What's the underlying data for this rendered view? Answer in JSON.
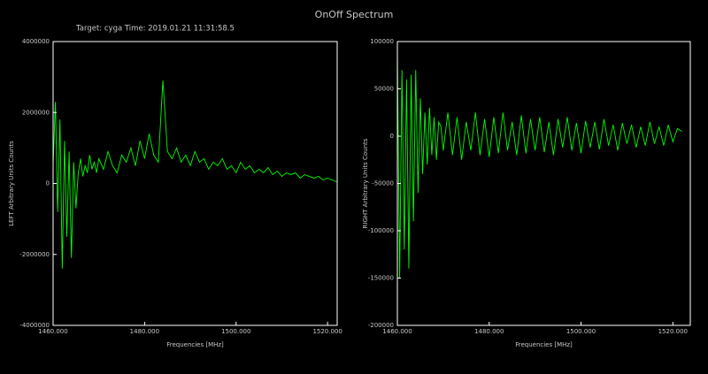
{
  "title": "OnOff Spectrum",
  "subtitle": "Target: cyga   Time: 2019.01.21 11:31:58.5",
  "chart_data": [
    {
      "type": "line",
      "xlabel": "Frequencies [MHz]",
      "ylabel": "LEFT  Arbitrary Units Counts",
      "xlim": [
        1460,
        1522.1
      ],
      "ylim": [
        -4000000,
        4000000
      ],
      "xticks": [
        {
          "value": 1460,
          "label": "1460.000"
        },
        {
          "value": 1480,
          "label": "1480.000"
        },
        {
          "value": 1500,
          "label": "1500.000"
        },
        {
          "value": 1520,
          "label": "1520.000"
        }
      ],
      "yticks": [
        -4000000,
        -2000000,
        0,
        2000000,
        4000000
      ],
      "x": [
        1460,
        1460.5,
        1461,
        1461.5,
        1462,
        1462.5,
        1463,
        1463.5,
        1464,
        1464.5,
        1465,
        1465.5,
        1466,
        1466.5,
        1467,
        1467.5,
        1468,
        1468.5,
        1469,
        1469.5,
        1470,
        1471,
        1472,
        1473,
        1474,
        1475,
        1476,
        1477,
        1478,
        1479,
        1480,
        1481,
        1482,
        1483,
        1484,
        1485,
        1486,
        1487,
        1488,
        1489,
        1490,
        1491,
        1492,
        1493,
        1494,
        1495,
        1496,
        1497,
        1498,
        1499,
        1500,
        1501,
        1502,
        1503,
        1504,
        1505,
        1506,
        1507,
        1508,
        1509,
        1510,
        1511,
        1512,
        1513,
        1514,
        1515,
        1516,
        1517,
        1518,
        1519,
        1520,
        1521,
        1522
      ],
      "series": [
        {
          "color": "#00ff00",
          "values": [
            500000,
            2300000,
            -800000,
            1800000,
            -2400000,
            1200000,
            -1500000,
            900000,
            -2100000,
            600000,
            -700000,
            300000,
            700000,
            200000,
            500000,
            300000,
            800000,
            400000,
            600000,
            300000,
            700000,
            400000,
            900000,
            500000,
            300000,
            800000,
            600000,
            1000000,
            500000,
            1200000,
            700000,
            1400000,
            800000,
            600000,
            2900000,
            900000,
            700000,
            1000000,
            600000,
            800000,
            500000,
            900000,
            600000,
            700000,
            400000,
            600000,
            500000,
            700000,
            400000,
            500000,
            300000,
            600000,
            400000,
            500000,
            300000,
            400000,
            300000,
            450000,
            250000,
            350000,
            200000,
            300000,
            250000,
            300000,
            150000,
            250000,
            200000,
            150000,
            200000,
            100000,
            150000,
            100000,
            50000
          ]
        }
      ]
    },
    {
      "type": "line",
      "xlabel": "Frequencies [MHz]",
      "ylabel": "RIGHT  Arbitrary Units Counts",
      "xlim": [
        1460,
        1523.8
      ],
      "ylim": [
        -200000,
        100000
      ],
      "xticks": [
        {
          "value": 1460,
          "label": "1460.000"
        },
        {
          "value": 1480,
          "label": "1480.000"
        },
        {
          "value": 1500,
          "label": "1500.000"
        },
        {
          "value": 1520,
          "label": "1520.000"
        }
      ],
      "yticks": [
        -200000,
        -150000,
        -100000,
        -50000,
        0,
        50000,
        100000
      ],
      "x": [
        1460,
        1460.5,
        1461,
        1461.5,
        1462,
        1462.5,
        1463,
        1463.5,
        1464,
        1464.5,
        1465,
        1465.5,
        1466,
        1466.5,
        1467,
        1467.5,
        1468,
        1468.5,
        1469,
        1469.5,
        1470,
        1471,
        1472,
        1473,
        1474,
        1475,
        1476,
        1477,
        1478,
        1479,
        1480,
        1481,
        1482,
        1483,
        1484,
        1485,
        1486,
        1487,
        1488,
        1489,
        1490,
        1491,
        1492,
        1493,
        1494,
        1495,
        1496,
        1497,
        1498,
        1499,
        1500,
        1501,
        1502,
        1503,
        1504,
        1505,
        1506,
        1507,
        1508,
        1509,
        1510,
        1511,
        1512,
        1513,
        1514,
        1515,
        1516,
        1517,
        1518,
        1519,
        1520,
        1521,
        1522
      ],
      "series": [
        {
          "color": "#00ff00",
          "values": [
            90000,
            -150000,
            70000,
            -120000,
            60000,
            -140000,
            65000,
            -90000,
            70000,
            -60000,
            40000,
            -40000,
            25000,
            -30000,
            30000,
            -20000,
            20000,
            -25000,
            15000,
            10000,
            -15000,
            25000,
            -20000,
            20000,
            -25000,
            15000,
            -15000,
            25000,
            -20000,
            18000,
            -22000,
            20000,
            -18000,
            25000,
            -15000,
            15000,
            -20000,
            22000,
            -18000,
            18000,
            -15000,
            20000,
            -17000,
            15000,
            -20000,
            18000,
            -12000,
            20000,
            -15000,
            14000,
            -18000,
            16000,
            -12000,
            15000,
            -14000,
            18000,
            -10000,
            12000,
            -15000,
            14000,
            -8000,
            12000,
            -12000,
            10000,
            -10000,
            15000,
            -8000,
            10000,
            -10000,
            12000,
            -6000,
            8000,
            5000
          ]
        }
      ]
    }
  ]
}
